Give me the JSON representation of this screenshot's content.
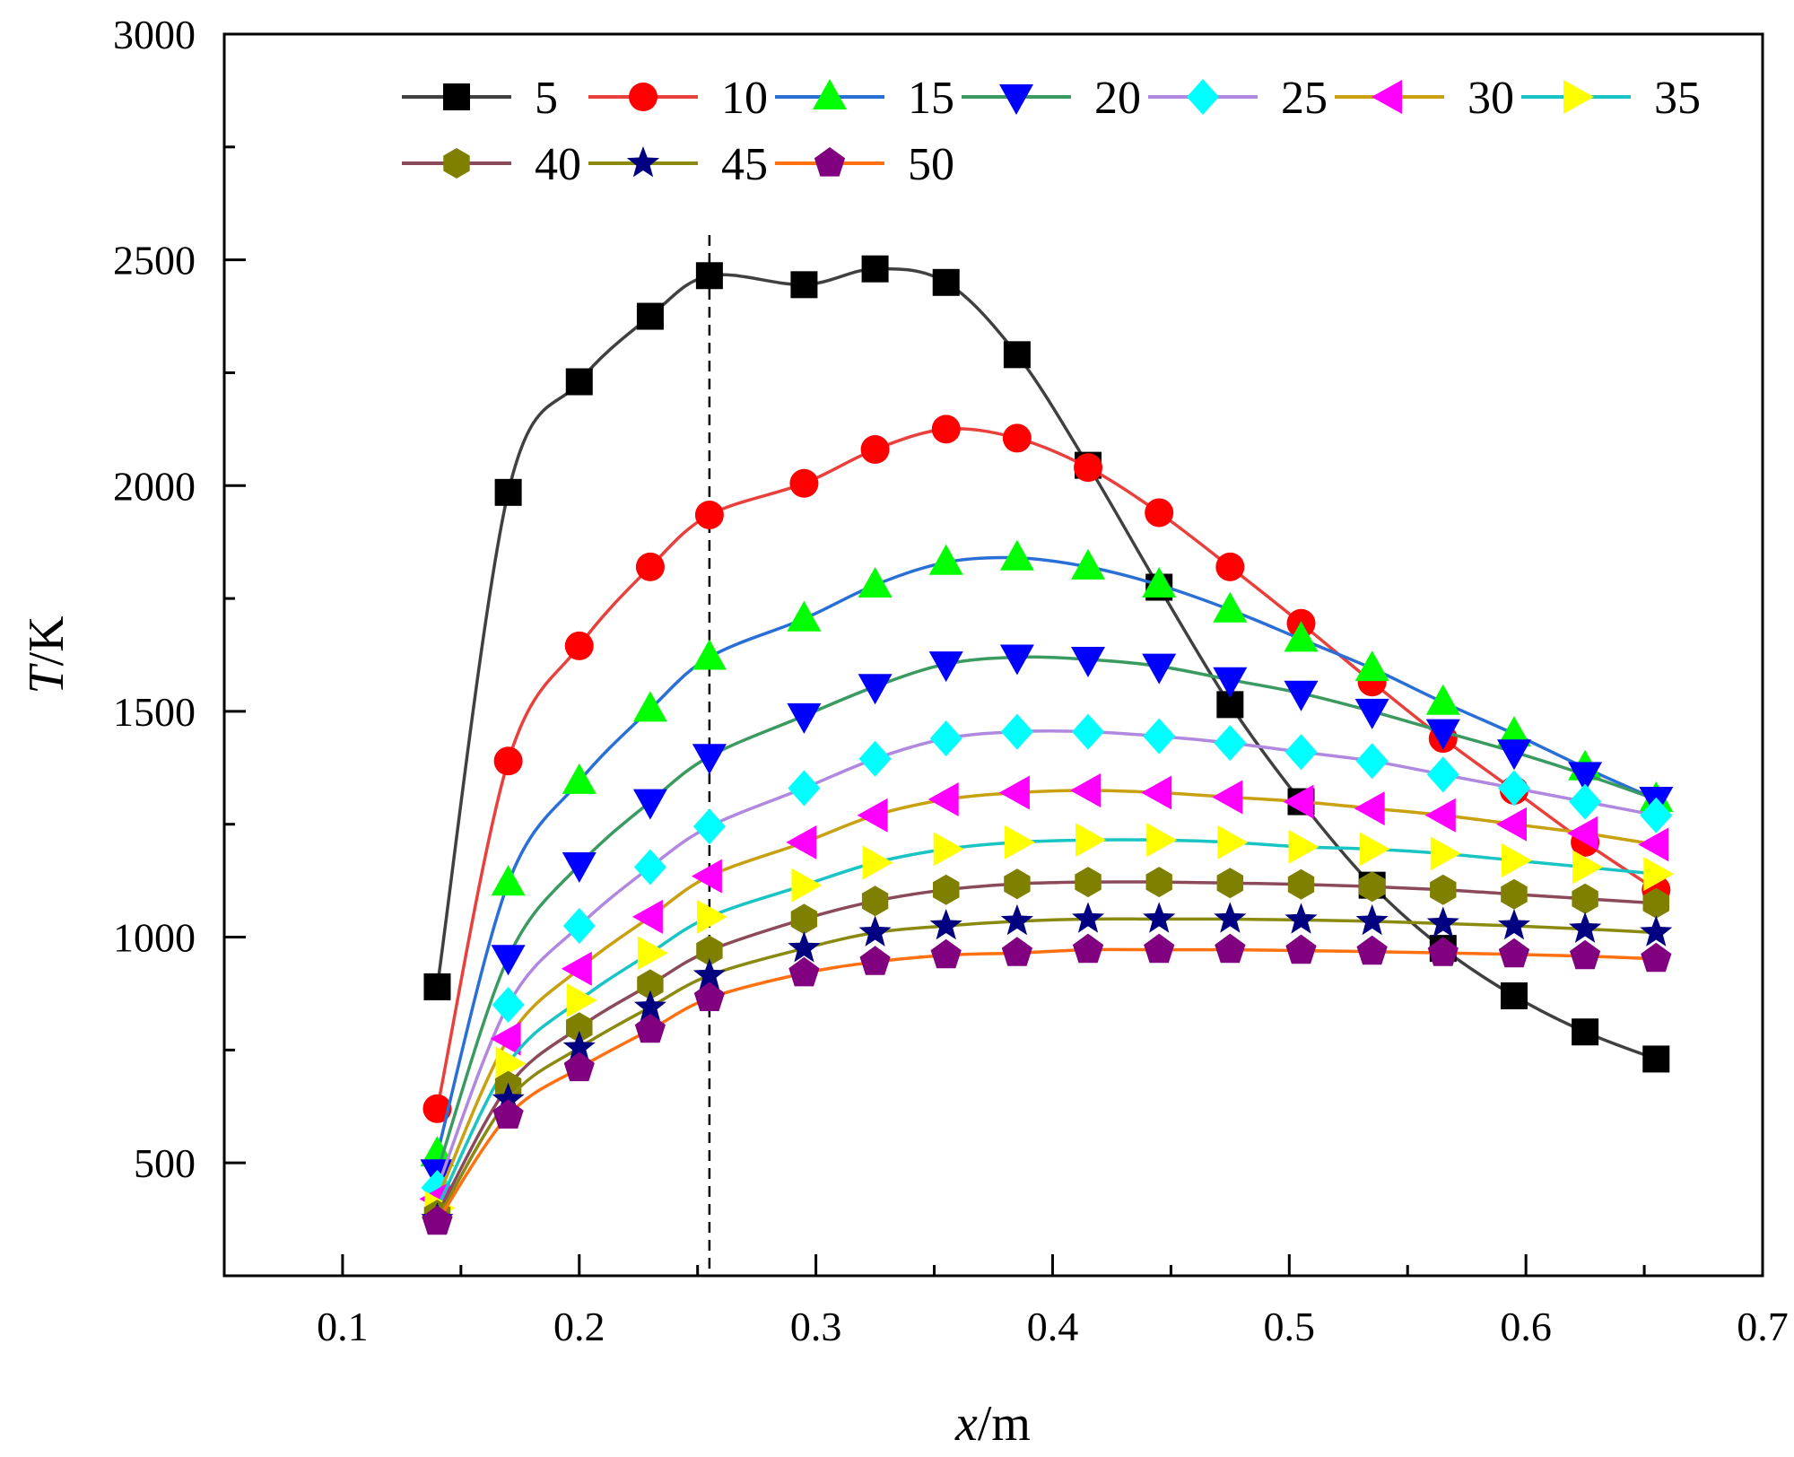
{
  "chart_data": {
    "type": "line",
    "title": "",
    "xlabel": "x/m",
    "xlabel_var": "x",
    "xlabel_unit": "/m",
    "ylabel": "T/K",
    "ylabel_var": "T",
    "ylabel_unit": "/K",
    "xlim": [
      0.05,
      0.7
    ],
    "ylim": [
      250,
      3000
    ],
    "xticks": [
      0.1,
      0.2,
      0.3,
      0.4,
      0.5,
      0.6,
      0.7
    ],
    "xtick_labels": [
      "0.1",
      "0.2",
      "0.3",
      "0.4",
      "0.5",
      "0.6",
      "0.7"
    ],
    "yticks": [
      500,
      1000,
      1500,
      2000,
      2500,
      3000
    ],
    "ytick_labels": [
      "500",
      "1000",
      "1500",
      "2000",
      "2500",
      "3000"
    ],
    "grid": false,
    "legend_position": "top",
    "reference_line": {
      "x": 0.255,
      "style": "dashed"
    },
    "x": [
      0.14,
      0.17,
      0.2,
      0.23,
      0.255,
      0.295,
      0.325,
      0.355,
      0.385,
      0.415,
      0.445,
      0.475,
      0.505,
      0.535,
      0.565,
      0.595,
      0.625,
      0.655
    ],
    "series": [
      {
        "name": "5",
        "marker": "square",
        "line_color": "#404040",
        "marker_color": "#000000",
        "values": [
          890,
          1985,
          2230,
          2375,
          2465,
          2445,
          2480,
          2450,
          2290,
          2045,
          1775,
          1515,
          1300,
          1115,
          975,
          870,
          790,
          730
        ]
      },
      {
        "name": "10",
        "marker": "circle",
        "line_color": "#e8403c",
        "marker_color": "#ff0000",
        "values": [
          620,
          1390,
          1645,
          1820,
          1935,
          2005,
          2080,
          2125,
          2105,
          2040,
          1940,
          1820,
          1695,
          1565,
          1440,
          1325,
          1210,
          1105
        ]
      },
      {
        "name": "15",
        "marker": "triangle-up",
        "line_color": "#2a6fd6",
        "marker_color": "#00ff00",
        "values": [
          520,
          1120,
          1345,
          1505,
          1620,
          1705,
          1780,
          1830,
          1840,
          1820,
          1780,
          1725,
          1660,
          1595,
          1520,
          1450,
          1375,
          1305
        ]
      },
      {
        "name": "20",
        "marker": "triangle-down",
        "line_color": "#3a9a60",
        "marker_color": "#0000ff",
        "values": [
          480,
          955,
          1160,
          1300,
          1400,
          1490,
          1555,
          1605,
          1620,
          1615,
          1600,
          1570,
          1540,
          1500,
          1455,
          1410,
          1360,
          1305
        ]
      },
      {
        "name": "25",
        "marker": "diamond",
        "line_color": "#b088e0",
        "marker_color": "#00ffff",
        "values": [
          445,
          850,
          1025,
          1155,
          1245,
          1330,
          1395,
          1440,
          1455,
          1455,
          1445,
          1430,
          1410,
          1390,
          1360,
          1330,
          1300,
          1270
        ]
      },
      {
        "name": "30",
        "marker": "triangle-left",
        "line_color": "#c8a010",
        "marker_color": "#ff00ff",
        "values": [
          420,
          775,
          930,
          1045,
          1135,
          1210,
          1270,
          1305,
          1320,
          1325,
          1320,
          1310,
          1300,
          1285,
          1270,
          1250,
          1230,
          1205
        ]
      },
      {
        "name": "35",
        "marker": "triangle-right",
        "line_color": "#19c4c4",
        "marker_color": "#ffff00",
        "values": [
          400,
          720,
          860,
          965,
          1045,
          1115,
          1165,
          1195,
          1210,
          1215,
          1215,
          1210,
          1200,
          1195,
          1185,
          1170,
          1155,
          1140
        ]
      },
      {
        "name": "40",
        "marker": "hexagon",
        "line_color": "#8b4a5a",
        "marker_color": "#808000",
        "values": [
          385,
          670,
          800,
          895,
          970,
          1040,
          1080,
          1105,
          1118,
          1122,
          1122,
          1120,
          1117,
          1112,
          1105,
          1095,
          1085,
          1075
        ]
      },
      {
        "name": "45",
        "marker": "star",
        "line_color": "#8a8a10",
        "marker_color": "#000080",
        "values": [
          375,
          640,
          755,
          845,
          915,
          975,
          1010,
          1025,
          1035,
          1040,
          1040,
          1040,
          1038,
          1035,
          1030,
          1025,
          1018,
          1010
        ]
      },
      {
        "name": "50",
        "marker": "pentagon",
        "line_color": "#ff7010",
        "marker_color": "#800080",
        "values": [
          370,
          605,
          710,
          795,
          865,
          920,
          945,
          960,
          965,
          972,
          972,
          972,
          970,
          968,
          965,
          962,
          958,
          952
        ]
      }
    ]
  }
}
